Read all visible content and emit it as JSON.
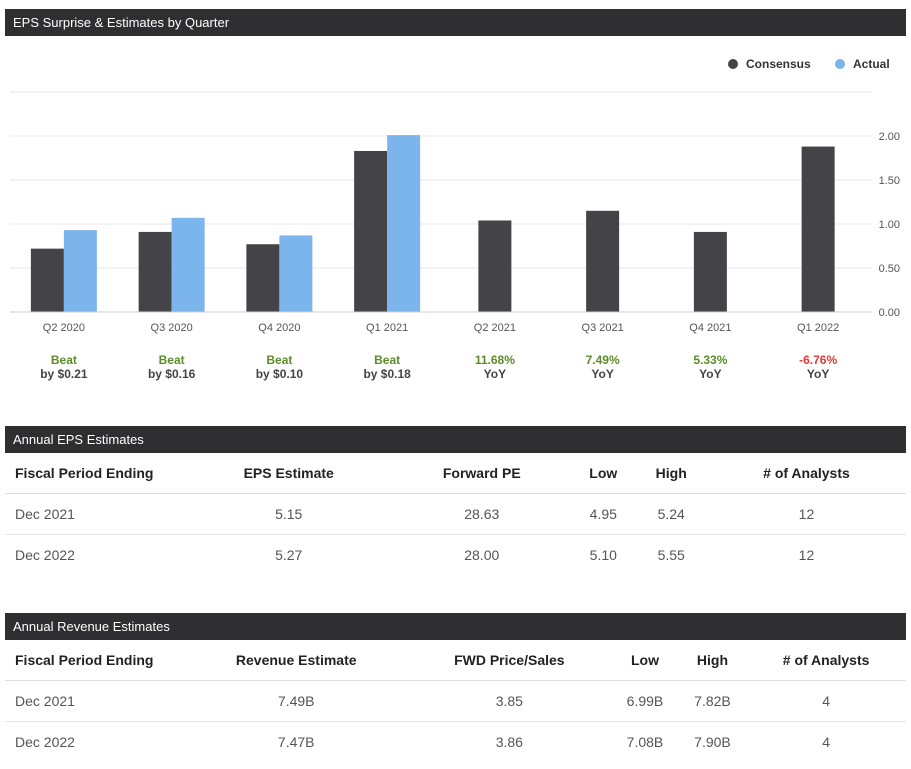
{
  "chart_section": {
    "title": "EPS Surprise & Estimates by Quarter"
  },
  "chart_data": {
    "type": "bar",
    "title": "EPS Surprise & Estimates by Quarter",
    "categories": [
      "Q2 2020",
      "Q3 2020",
      "Q4 2020",
      "Q1 2021",
      "Q2 2021",
      "Q3 2021",
      "Q4 2021",
      "Q1 2022"
    ],
    "series": [
      {
        "name": "Consensus",
        "color": "#434348",
        "values": [
          0.72,
          0.91,
          0.77,
          1.83,
          1.04,
          1.15,
          0.91,
          1.88
        ]
      },
      {
        "name": "Actual",
        "color": "#7cb5ec",
        "values": [
          0.93,
          1.07,
          0.87,
          2.01,
          null,
          null,
          null,
          null
        ]
      }
    ],
    "yticks": [
      "0.00",
      "0.50",
      "1.00",
      "1.50",
      "2.00"
    ],
    "ylim": [
      0,
      2.5
    ],
    "yaxis_position": "right",
    "legend_position": "top-right",
    "results": [
      {
        "top": "Beat",
        "bottom": "by $0.21",
        "color": "#5b8c2a"
      },
      {
        "top": "Beat",
        "bottom": "by $0.16",
        "color": "#5b8c2a"
      },
      {
        "top": "Beat",
        "bottom": "by $0.10",
        "color": "#5b8c2a"
      },
      {
        "top": "Beat",
        "bottom": "by $0.18",
        "color": "#5b8c2a"
      },
      {
        "top": "11.68%",
        "bottom": "YoY",
        "color": "#5b8c2a"
      },
      {
        "top": "7.49%",
        "bottom": "YoY",
        "color": "#5b8c2a"
      },
      {
        "top": "5.33%",
        "bottom": "YoY",
        "color": "#5b8c2a"
      },
      {
        "top": "-6.76%",
        "bottom": "YoY",
        "color": "#e53935"
      }
    ]
  },
  "annual_eps": {
    "title": "Annual EPS Estimates",
    "headers": [
      "Fiscal Period Ending",
      "EPS Estimate",
      "Forward PE",
      "Low",
      "High",
      "# of Analysts"
    ],
    "rows": [
      [
        "Dec 2021",
        "5.15",
        "28.63",
        "4.95",
        "5.24",
        "12"
      ],
      [
        "Dec 2022",
        "5.27",
        "28.00",
        "5.10",
        "5.55",
        "12"
      ]
    ]
  },
  "annual_revenue": {
    "title": "Annual Revenue Estimates",
    "headers": [
      "Fiscal Period Ending",
      "Revenue Estimate",
      "FWD Price/Sales",
      "Low",
      "High",
      "# of Analysts"
    ],
    "rows": [
      [
        "Dec 2021",
        "7.49B",
        "3.85",
        "6.99B",
        "7.82B",
        "4"
      ],
      [
        "Dec 2022",
        "7.47B",
        "3.86",
        "7.08B",
        "7.90B",
        "4"
      ]
    ]
  }
}
